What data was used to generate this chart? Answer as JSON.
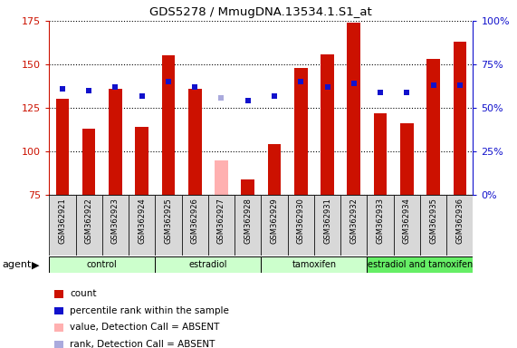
{
  "title": "GDS5278 / MmugDNA.13534.1.S1_at",
  "samples": [
    "GSM362921",
    "GSM362922",
    "GSM362923",
    "GSM362924",
    "GSM362925",
    "GSM362926",
    "GSM362927",
    "GSM362928",
    "GSM362929",
    "GSM362930",
    "GSM362931",
    "GSM362932",
    "GSM362933",
    "GSM362934",
    "GSM362935",
    "GSM362936"
  ],
  "bar_values": [
    130,
    113,
    136,
    114,
    155,
    136,
    95,
    84,
    104,
    148,
    156,
    174,
    122,
    116,
    153,
    163
  ],
  "bar_absent": [
    false,
    false,
    false,
    false,
    false,
    false,
    true,
    false,
    false,
    false,
    false,
    false,
    false,
    false,
    false,
    false
  ],
  "rank_values_left": [
    136,
    135,
    137,
    132,
    140,
    137,
    131,
    129,
    132,
    140,
    137,
    139,
    134,
    134,
    138,
    138
  ],
  "rank_absent": [
    false,
    false,
    false,
    false,
    false,
    false,
    true,
    false,
    false,
    false,
    false,
    false,
    false,
    false,
    false,
    false
  ],
  "bar_color_normal": "#cc1100",
  "bar_color_absent": "#ffb0b0",
  "rank_color_normal": "#1111cc",
  "rank_color_absent": "#aaaadd",
  "bar_width": 0.5,
  "ylim_left": [
    75,
    175
  ],
  "ylim_right": [
    0,
    100
  ],
  "yticks_left": [
    75,
    100,
    125,
    150,
    175
  ],
  "yticks_right": [
    0,
    25,
    50,
    75,
    100
  ],
  "yticklabels_right": [
    "0%",
    "25%",
    "50%",
    "75%",
    "100%"
  ],
  "group_colors": [
    "#ccffcc",
    "#ccffcc",
    "#ccffcc",
    "#66ee66"
  ],
  "group_labels": [
    "control",
    "estradiol",
    "tamoxifen",
    "estradiol and tamoxifen"
  ],
  "group_ranges": [
    [
      0,
      3
    ],
    [
      4,
      7
    ],
    [
      8,
      11
    ],
    [
      12,
      15
    ]
  ],
  "agent_label": "agent",
  "legend_colors": [
    "#cc1100",
    "#1111cc",
    "#ffb0b0",
    "#aaaadd"
  ],
  "legend_labels": [
    "count",
    "percentile rank within the sample",
    "value, Detection Call = ABSENT",
    "rank, Detection Call = ABSENT"
  ],
  "grid_color": "black",
  "background_color": "#ffffff",
  "axis_color_left": "#cc1100",
  "axis_color_right": "#1111cc",
  "figsize": [
    5.71,
    3.84
  ],
  "dpi": 100
}
